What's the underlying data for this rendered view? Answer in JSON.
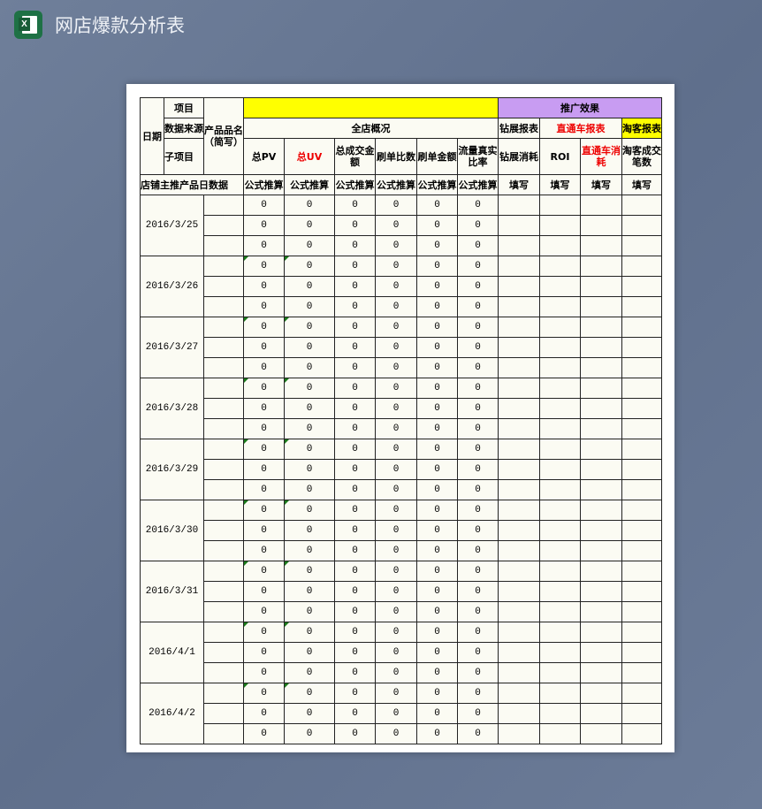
{
  "window": {
    "title": "网店爆款分析表",
    "app_icon": "excel-icon"
  },
  "colors": {
    "yellow": "#ffff00",
    "purple": "#c89cf2",
    "red": "#ee0000",
    "sheet_bg": "#fbfbf3"
  },
  "header": {
    "date": "日期",
    "item": "项目",
    "data_source": "数据来源",
    "sub_item": "子项目",
    "product_name": "产品品名（简写）",
    "promo": "推广效果",
    "store_overview": "全店概况",
    "zuanzhan_report": "钻展报表",
    "ztc_report": "直通车报表",
    "taoke_report": "淘客报表",
    "cols": [
      "总PV",
      "总UV",
      "总成交金额",
      "刷单比数",
      "刷单金额",
      "流量真实比率",
      "钻展消耗",
      "ROI",
      "直通车消耗",
      "淘客成交笔数"
    ],
    "row_label": "店铺主推产品日数据",
    "row_types": [
      "公式推算",
      "公式推算",
      "公式推算",
      "公式推算",
      "公式推算",
      "公式推算",
      "填写",
      "填写",
      "填写",
      "填写"
    ]
  },
  "groups": [
    {
      "date": "2016/3/25",
      "rows": [
        [
          0,
          0,
          0,
          0,
          0,
          0
        ],
        [
          0,
          0,
          0,
          0,
          0,
          0
        ],
        [
          0,
          0,
          0,
          0,
          0,
          0
        ]
      ]
    },
    {
      "date": "2016/3/26",
      "rows": [
        [
          0,
          0,
          0,
          0,
          0,
          0
        ],
        [
          0,
          0,
          0,
          0,
          0,
          0
        ],
        [
          0,
          0,
          0,
          0,
          0,
          0
        ]
      ]
    },
    {
      "date": "2016/3/27",
      "rows": [
        [
          0,
          0,
          0,
          0,
          0,
          0
        ],
        [
          0,
          0,
          0,
          0,
          0,
          0
        ],
        [
          0,
          0,
          0,
          0,
          0,
          0
        ]
      ]
    },
    {
      "date": "2016/3/28",
      "rows": [
        [
          0,
          0,
          0,
          0,
          0,
          0
        ],
        [
          0,
          0,
          0,
          0,
          0,
          0
        ],
        [
          0,
          0,
          0,
          0,
          0,
          0
        ]
      ]
    },
    {
      "date": "2016/3/29",
      "rows": [
        [
          0,
          0,
          0,
          0,
          0,
          0
        ],
        [
          0,
          0,
          0,
          0,
          0,
          0
        ],
        [
          0,
          0,
          0,
          0,
          0,
          0
        ]
      ]
    },
    {
      "date": "2016/3/30",
      "rows": [
        [
          0,
          0,
          0,
          0,
          0,
          0
        ],
        [
          0,
          0,
          0,
          0,
          0,
          0
        ],
        [
          0,
          0,
          0,
          0,
          0,
          0
        ]
      ]
    },
    {
      "date": "2016/3/31",
      "rows": [
        [
          0,
          0,
          0,
          0,
          0,
          0
        ],
        [
          0,
          0,
          0,
          0,
          0,
          0
        ],
        [
          0,
          0,
          0,
          0,
          0,
          0
        ]
      ]
    },
    {
      "date": "2016/4/1",
      "rows": [
        [
          0,
          0,
          0,
          0,
          0,
          0
        ],
        [
          0,
          0,
          0,
          0,
          0,
          0
        ],
        [
          0,
          0,
          0,
          0,
          0,
          0
        ]
      ]
    },
    {
      "date": "2016/4/2",
      "rows": [
        [
          0,
          0,
          0,
          0,
          0,
          0
        ],
        [
          0,
          0,
          0,
          0,
          0,
          0
        ],
        [
          0,
          0,
          0,
          0,
          0,
          0
        ]
      ]
    }
  ]
}
